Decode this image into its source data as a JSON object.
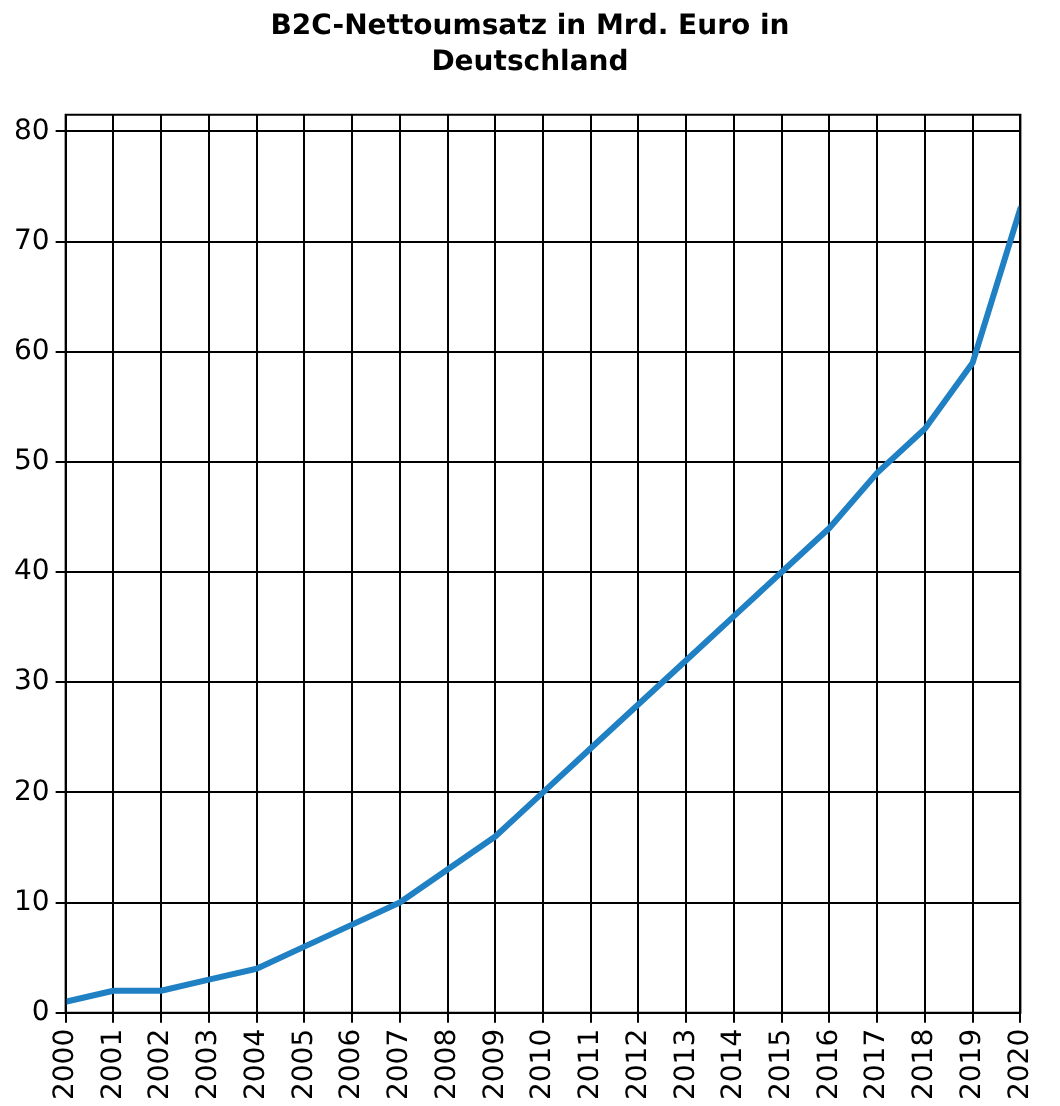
{
  "chart_data": {
    "type": "line",
    "title": "B2C-Nettoumsatz in Mrd. Euro in Deutschland",
    "x": [
      2000,
      2001,
      2002,
      2003,
      2004,
      2005,
      2006,
      2007,
      2008,
      2009,
      2010,
      2011,
      2012,
      2013,
      2014,
      2015,
      2016,
      2017,
      2018,
      2019,
      2020
    ],
    "series": [
      {
        "color": "#1f80c4",
        "values": [
          1,
          2,
          2,
          3,
          4,
          6,
          8,
          10,
          13,
          16,
          20,
          24,
          28,
          32,
          36,
          40,
          44,
          49,
          53,
          59,
          73
        ]
      }
    ],
    "xlim": [
      2000,
      2020
    ],
    "xticks": [
      2000,
      2001,
      2002,
      2003,
      2004,
      2005,
      2006,
      2007,
      2008,
      2009,
      2010,
      2011,
      2012,
      2013,
      2014,
      2015,
      2016,
      2017,
      2018,
      2019,
      2020
    ],
    "ylim": [
      0,
      81.5
    ],
    "yticks": [
      0,
      10,
      20,
      30,
      40,
      50,
      60,
      70,
      80
    ],
    "grid": true,
    "legend": false,
    "marker": "none",
    "line_style": "solid"
  }
}
